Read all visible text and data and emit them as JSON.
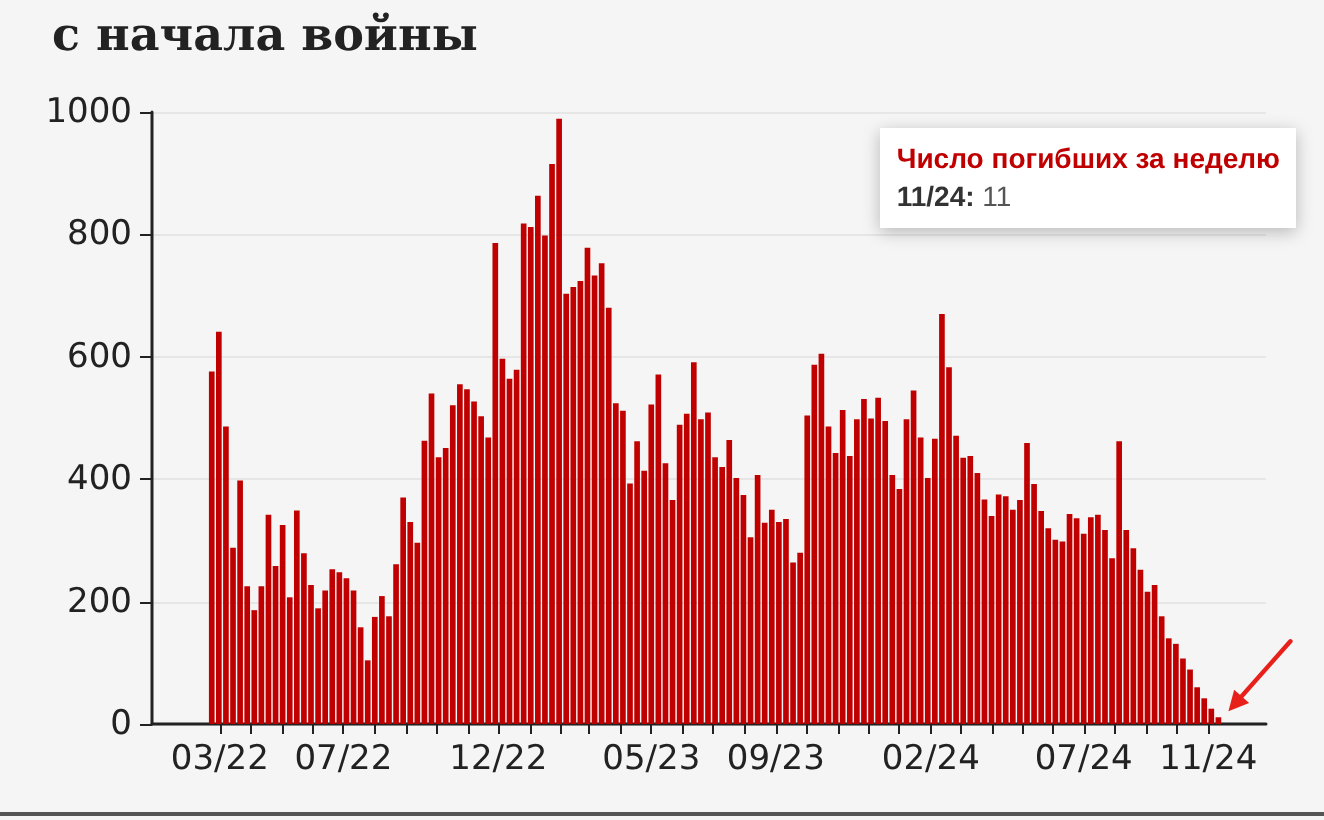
{
  "chart_data": {
    "type": "bar",
    "title": "с начала войны",
    "x": [
      "2022-02-21",
      "2022-02-28",
      "2022-03-07",
      "2022-03-14",
      "2022-03-21",
      "2022-03-28",
      "2022-04-04",
      "2022-04-11",
      "2022-04-18",
      "2022-04-25",
      "2022-05-02",
      "2022-05-09",
      "2022-05-16",
      "2022-05-23",
      "2022-05-30",
      "2022-06-06",
      "2022-06-13",
      "2022-06-20",
      "2022-06-27",
      "2022-07-04",
      "2022-07-11",
      "2022-07-18",
      "2022-07-25",
      "2022-08-01",
      "2022-08-08",
      "2022-08-15",
      "2022-08-22",
      "2022-08-29",
      "2022-09-05",
      "2022-09-12",
      "2022-09-19",
      "2022-09-26",
      "2022-10-03",
      "2022-10-10",
      "2022-10-17",
      "2022-10-24",
      "2022-10-31",
      "2022-11-07",
      "2022-11-14",
      "2022-11-21",
      "2022-11-28",
      "2022-12-05",
      "2022-12-12",
      "2022-12-19",
      "2022-12-26",
      "2023-01-02",
      "2023-01-09",
      "2023-01-16",
      "2023-01-23",
      "2023-01-30",
      "2023-02-06",
      "2023-02-13",
      "2023-02-20",
      "2023-02-27",
      "2023-03-06",
      "2023-03-13",
      "2023-03-20",
      "2023-03-27",
      "2023-04-03",
      "2023-04-10",
      "2023-04-17",
      "2023-04-24",
      "2023-05-01",
      "2023-05-08",
      "2023-05-15",
      "2023-05-22",
      "2023-05-29",
      "2023-06-05",
      "2023-06-12",
      "2023-06-19",
      "2023-06-26",
      "2023-07-03",
      "2023-07-10",
      "2023-07-17",
      "2023-07-24",
      "2023-07-31",
      "2023-08-07",
      "2023-08-14",
      "2023-08-21",
      "2023-08-28",
      "2023-09-04",
      "2023-09-11",
      "2023-09-18",
      "2023-09-25",
      "2023-10-02",
      "2023-10-09",
      "2023-10-16",
      "2023-10-23",
      "2023-10-30",
      "2023-11-06",
      "2023-11-13",
      "2023-11-20",
      "2023-11-27",
      "2023-12-04",
      "2023-12-11",
      "2023-12-18",
      "2023-12-25",
      "2024-01-01",
      "2024-01-08",
      "2024-01-15",
      "2024-01-22",
      "2024-01-29",
      "2024-02-05",
      "2024-02-12",
      "2024-02-19",
      "2024-02-26",
      "2024-03-04",
      "2024-03-11",
      "2024-03-18",
      "2024-03-25",
      "2024-04-01",
      "2024-04-08",
      "2024-04-15",
      "2024-04-22",
      "2024-04-29",
      "2024-05-06",
      "2024-05-13",
      "2024-05-20",
      "2024-05-27",
      "2024-06-03",
      "2024-06-10",
      "2024-06-17",
      "2024-06-24",
      "2024-07-01",
      "2024-07-08",
      "2024-07-15",
      "2024-07-22",
      "2024-07-29",
      "2024-08-05",
      "2024-08-12",
      "2024-08-19",
      "2024-08-26",
      "2024-09-02",
      "2024-09-09",
      "2024-09-16",
      "2024-09-23",
      "2024-09-30",
      "2024-10-07",
      "2024-10-14",
      "2024-10-21",
      "2024-10-28",
      "2024-11-04",
      "2024-11-11"
    ],
    "values": [
      576,
      641,
      486,
      288,
      398,
      225,
      186,
      225,
      342,
      258,
      325,
      207,
      349,
      279,
      227,
      189,
      218,
      253,
      248,
      238,
      218,
      158,
      104,
      175,
      209,
      176,
      261,
      370,
      330,
      296,
      463,
      540,
      436,
      451,
      521,
      555,
      547,
      527,
      503,
      468,
      786,
      597,
      564,
      579,
      818,
      812,
      863,
      798,
      915,
      989,
      703,
      714,
      724,
      778,
      733,
      753,
      680,
      524,
      512,
      393,
      462,
      414,
      522,
      571,
      426,
      366,
      489,
      507,
      591,
      498,
      509,
      436,
      420,
      464,
      402,
      374,
      305,
      407,
      329,
      350,
      330,
      335,
      264,
      280,
      504,
      587,
      605,
      486,
      443,
      513,
      438,
      498,
      531,
      499,
      533,
      495,
      407,
      384,
      498,
      545,
      468,
      402,
      466,
      670,
      583,
      471,
      435,
      438,
      410,
      367,
      340,
      375,
      372,
      350,
      366,
      459,
      392,
      348,
      320,
      301,
      298,
      343,
      336,
      311,
      338,
      342,
      317,
      271,
      462,
      317,
      287,
      252,
      216,
      227,
      176,
      140,
      131,
      107,
      89,
      60,
      42,
      25,
      11
    ],
    "color": "#c00000",
    "xlim": [
      "2021-12-24",
      "2024-12-28"
    ],
    "xticks": [
      {
        "value": "2022-03",
        "label": "03/22"
      },
      {
        "value": "2022-04",
        "label": null
      },
      {
        "value": "2022-05",
        "label": null
      },
      {
        "value": "2022-06",
        "label": null
      },
      {
        "value": "2022-07",
        "label": "07/22"
      },
      {
        "value": "2022-08",
        "label": null
      },
      {
        "value": "2022-09",
        "label": null
      },
      {
        "value": "2022-10",
        "label": null
      },
      {
        "value": "2022-11",
        "label": null
      },
      {
        "value": "2022-12",
        "label": "12/22"
      },
      {
        "value": "2023-01",
        "label": null
      },
      {
        "value": "2023-02",
        "label": null
      },
      {
        "value": "2023-03",
        "label": null
      },
      {
        "value": "2023-04",
        "label": null
      },
      {
        "value": "2023-05",
        "label": "05/23"
      },
      {
        "value": "2023-06",
        "label": null
      },
      {
        "value": "2023-07",
        "label": null
      },
      {
        "value": "2023-08",
        "label": null
      },
      {
        "value": "2023-09",
        "label": "09/23"
      },
      {
        "value": "2023-10",
        "label": null
      },
      {
        "value": "2023-11",
        "label": null
      },
      {
        "value": "2023-12",
        "label": null
      },
      {
        "value": "2024-01",
        "label": null
      },
      {
        "value": "2024-02",
        "label": "02/24"
      },
      {
        "value": "2024-03",
        "label": null
      },
      {
        "value": "2024-04",
        "label": null
      },
      {
        "value": "2024-05",
        "label": null
      },
      {
        "value": "2024-06",
        "label": null
      },
      {
        "value": "2024-07",
        "label": "07/24"
      },
      {
        "value": "2024-08",
        "label": null
      },
      {
        "value": "2024-09",
        "label": null
      },
      {
        "value": "2024-10",
        "label": null
      },
      {
        "value": "2024-11",
        "label": "11/24"
      }
    ],
    "ylim": [
      0,
      1000
    ],
    "yticks": [
      0,
      200,
      400,
      600,
      800,
      1000
    ],
    "grid": "y",
    "annotations": [
      "Число погибших за неделю\n11/24: 11"
    ]
  }
}
